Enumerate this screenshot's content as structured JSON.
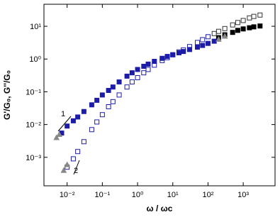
{
  "chart_data": {
    "type": "scatter",
    "xlabel": "ω / ωc",
    "ylabel": "G'/G₀, G''/G₀",
    "xscale": "log",
    "yscale": "log",
    "xlim": [
      0.0022,
      8000
    ],
    "ylim": [
      0.000135,
      47
    ],
    "xticks": [
      {
        "value": 0.01,
        "label": "10⁻²"
      },
      {
        "value": 0.1,
        "label": "10⁻¹"
      },
      {
        "value": 1,
        "label": "10⁰"
      },
      {
        "value": 10,
        "label": "10¹"
      },
      {
        "value": 100,
        "label": "10²"
      },
      {
        "value": 1000,
        "label": "10³"
      }
    ],
    "yticks": [
      {
        "value": 0.001,
        "label": "10⁻³"
      },
      {
        "value": 0.01,
        "label": "10⁻²"
      },
      {
        "value": 0.1,
        "label": "10⁻¹"
      },
      {
        "value": 1,
        "label": "10⁰"
      },
      {
        "value": 10,
        "label": "10¹"
      }
    ],
    "annotations": [
      "1",
      "2"
    ],
    "series": [
      {
        "color": "#1c1ca8",
        "marker": "square",
        "filled": true,
        "x": [
          0.007,
          0.01,
          0.015,
          0.02,
          0.03,
          0.05,
          0.07,
          0.1,
          0.15,
          0.2,
          0.3,
          0.5,
          0.7,
          1,
          1.5,
          2,
          3,
          5,
          7,
          10,
          15,
          20,
          30,
          50,
          70,
          100,
          150
        ],
        "values": [
          0.0055,
          0.009,
          0.013,
          0.017,
          0.025,
          0.04,
          0.055,
          0.08,
          0.11,
          0.14,
          0.2,
          0.3,
          0.38,
          0.48,
          0.6,
          0.7,
          0.85,
          1.05,
          1.2,
          1.35,
          1.55,
          1.7,
          1.95,
          2.3,
          2.6,
          3.0,
          3.5
        ]
      },
      {
        "color": "#000000",
        "marker": "square",
        "filled": true,
        "x": [
          200,
          300,
          500,
          700,
          1000,
          1500,
          2000,
          3000
        ],
        "values": [
          4.5,
          5.5,
          6.5,
          7.5,
          8.3,
          9.0,
          9.6,
          10.2
        ]
      },
      {
        "color": "#1c1ca8",
        "marker": "square",
        "filled": false,
        "x": [
          0.01,
          0.015,
          0.02,
          0.03,
          0.05,
          0.07,
          0.1,
          0.15,
          0.2,
          0.3,
          0.5,
          0.7,
          1,
          1.5,
          2,
          3,
          5,
          7,
          10,
          15,
          20,
          30,
          50,
          70,
          100
        ],
        "values": [
          0.0005,
          0.0009,
          0.0015,
          0.003,
          0.007,
          0.012,
          0.02,
          0.035,
          0.05,
          0.08,
          0.14,
          0.2,
          0.27,
          0.38,
          0.48,
          0.65,
          0.9,
          1.1,
          1.35,
          1.65,
          1.9,
          2.4,
          3.2,
          3.9,
          4.8
        ]
      },
      {
        "color": "#333333",
        "marker": "square",
        "filled": false,
        "x": [
          150,
          200,
          300,
          500,
          700,
          1000,
          1500,
          2000,
          3000
        ],
        "values": [
          6,
          7,
          8.5,
          11,
          13,
          15,
          18,
          20,
          22
        ]
      },
      {
        "color": "#888888",
        "marker": "triangle",
        "filled": true,
        "x": [
          0.005,
          0.006,
          0.008,
          0.01,
          200,
          300
        ],
        "values": [
          0.004,
          0.005,
          0.0004,
          0.0006,
          4,
          5
        ]
      }
    ]
  }
}
